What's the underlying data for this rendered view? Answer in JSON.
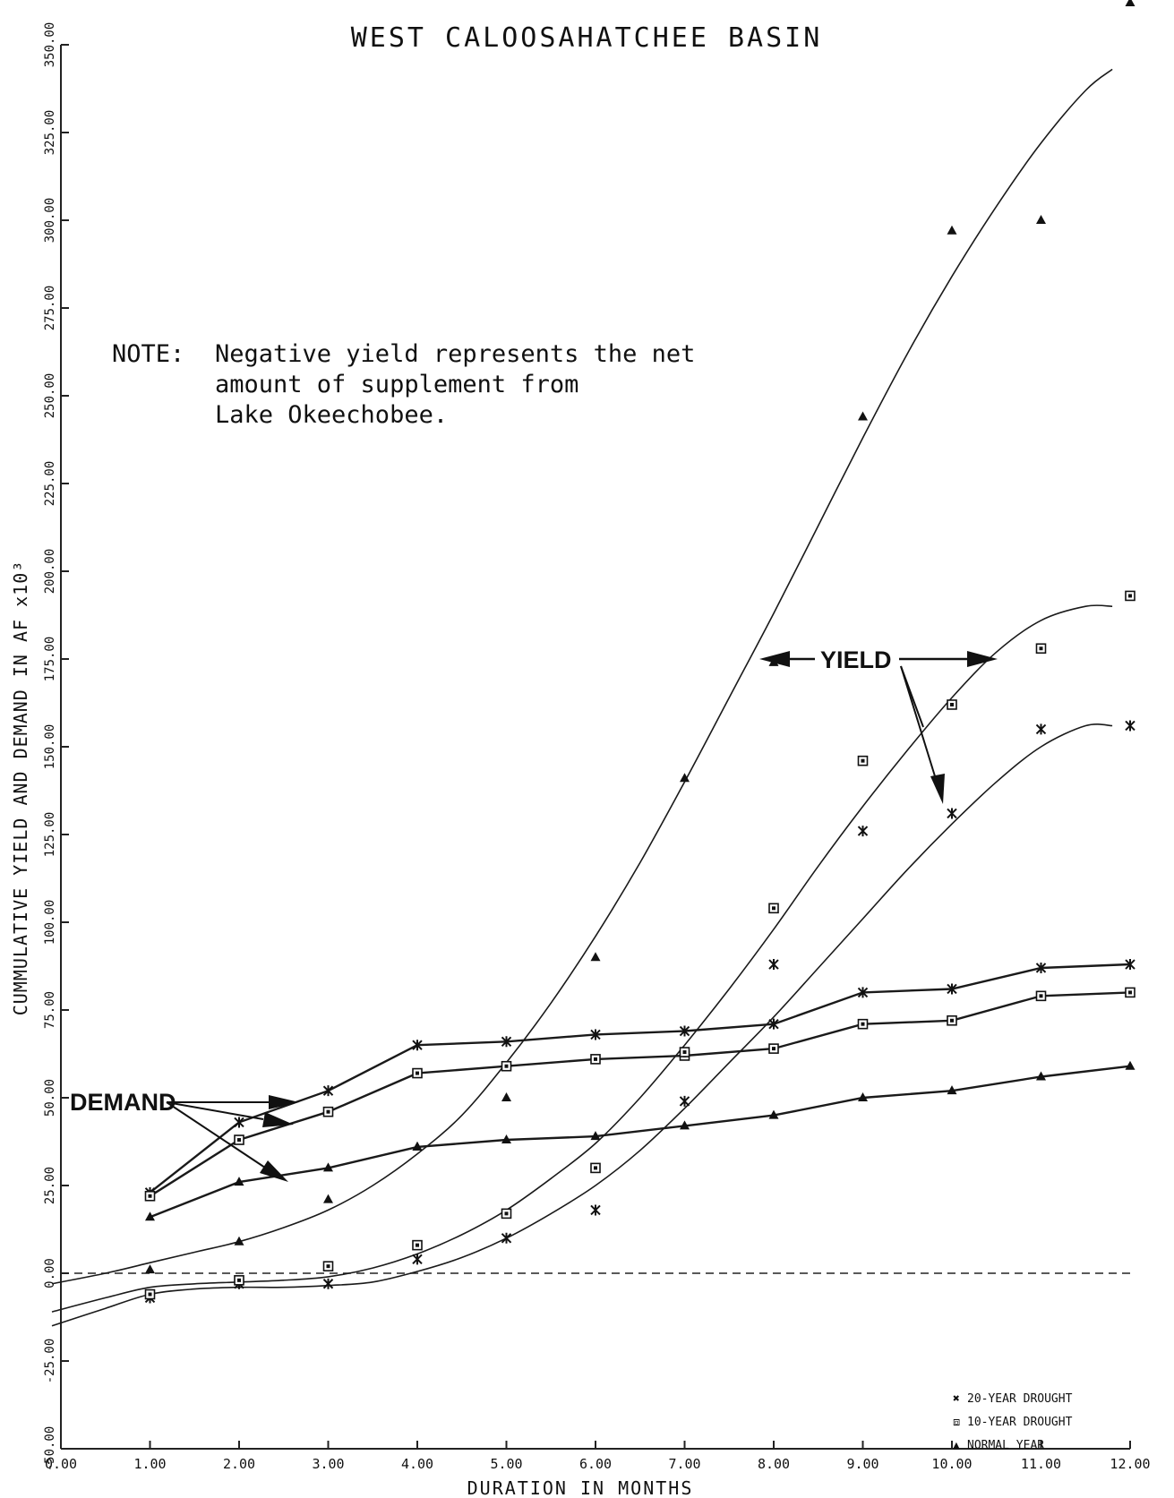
{
  "chart_data": {
    "type": "line",
    "title": "WEST CALOOSAHATCHEE BASIN",
    "xlabel": "DURATION IN MONTHS",
    "ylabel": "CUMMULATIVE YIELD AND DEMAND IN AF x10³",
    "xlim": [
      0,
      12
    ],
    "ylim": [
      -50,
      350
    ],
    "x_ticks": [
      0,
      1,
      2,
      3,
      4,
      5,
      6,
      7,
      8,
      9,
      10,
      11,
      12
    ],
    "x_tick_labels": [
      "0.00",
      "1.00",
      "2.00",
      "3.00",
      "4.00",
      "5.00",
      "6.00",
      "7.00",
      "8.00",
      "9.00",
      "10.00",
      "11.00",
      "12.00"
    ],
    "y_ticks": [
      -50,
      -25,
      0,
      25,
      50,
      75,
      100,
      125,
      150,
      175,
      200,
      225,
      250,
      275,
      300,
      325,
      350
    ],
    "y_tick_labels": [
      "-50.00",
      "-25.00",
      "0.00",
      "25.00",
      "50.00",
      "75.00",
      "100.00",
      "125.00",
      "150.00",
      "175.00",
      "200.00",
      "225.00",
      "250.00",
      "275.00",
      "300.00",
      "325.00",
      "350.00"
    ],
    "grid": false,
    "legend_position": "bottom-right",
    "zero_reference": 0,
    "series": [
      {
        "name": "20-YEAR DROUGHT",
        "marker": "x-box",
        "x": [
          1,
          2,
          3,
          4,
          5,
          6,
          7,
          8,
          9,
          10,
          11,
          12
        ],
        "demand": [
          23,
          43,
          52,
          65,
          66,
          68,
          69,
          71,
          80,
          81,
          87,
          88
        ],
        "yield_points": [
          -7,
          -3,
          -3,
          4,
          10,
          18,
          49,
          88,
          126,
          131,
          155,
          156
        ],
        "yield_curve": [
          [
            -0.1,
            -15
          ],
          [
            0.5,
            -10
          ],
          [
            1,
            -6
          ],
          [
            1.5,
            -4.5
          ],
          [
            2,
            -4
          ],
          [
            2.5,
            -4
          ],
          [
            3,
            -3.5
          ],
          [
            3.5,
            -2.5
          ],
          [
            4,
            0.5
          ],
          [
            4.5,
            4.5
          ],
          [
            5,
            10
          ],
          [
            5.5,
            17
          ],
          [
            6,
            25
          ],
          [
            6.5,
            35
          ],
          [
            7,
            47
          ],
          [
            7.5,
            60
          ],
          [
            8,
            73
          ],
          [
            8.5,
            87
          ],
          [
            9,
            101
          ],
          [
            9.5,
            115
          ],
          [
            10,
            128
          ],
          [
            10.5,
            140
          ],
          [
            11,
            150
          ],
          [
            11.5,
            156
          ],
          [
            11.8,
            156
          ]
        ]
      },
      {
        "name": "10-YEAR DROUGHT",
        "marker": "square-box",
        "x": [
          1,
          2,
          3,
          4,
          5,
          6,
          7,
          8,
          9,
          10,
          11,
          12
        ],
        "demand": [
          22,
          38,
          46,
          57,
          59,
          61,
          62,
          64,
          71,
          72,
          79,
          80
        ],
        "yield_points": [
          -6,
          -2,
          2,
          8,
          17,
          30,
          63,
          104,
          146,
          162,
          178,
          193
        ],
        "yield_curve": [
          [
            -0.1,
            -11
          ],
          [
            0.5,
            -7
          ],
          [
            1,
            -4
          ],
          [
            1.5,
            -3
          ],
          [
            2,
            -2.5
          ],
          [
            2.5,
            -2
          ],
          [
            3,
            -1
          ],
          [
            3.5,
            1.5
          ],
          [
            4,
            5.5
          ],
          [
            4.5,
            11
          ],
          [
            5,
            18
          ],
          [
            5.5,
            27
          ],
          [
            6,
            37
          ],
          [
            6.5,
            50
          ],
          [
            7,
            65
          ],
          [
            7.5,
            81
          ],
          [
            8,
            98
          ],
          [
            8.5,
            116
          ],
          [
            9,
            133
          ],
          [
            9.5,
            149
          ],
          [
            10,
            164
          ],
          [
            10.5,
            177
          ],
          [
            11,
            186
          ],
          [
            11.5,
            190
          ],
          [
            11.8,
            190
          ]
        ]
      },
      {
        "name": "NORMAL YEAR",
        "marker": "triangle",
        "x": [
          1,
          2,
          3,
          4,
          5,
          6,
          7,
          8,
          9,
          10,
          11,
          12
        ],
        "demand": [
          16,
          26,
          30,
          36,
          38,
          39,
          42,
          45,
          50,
          52,
          56,
          59
        ],
        "yield_points": [
          1,
          9,
          21,
          36,
          50,
          90,
          141,
          174,
          244,
          297,
          300,
          362
        ],
        "yield_curve": [
          [
            -0.1,
            -3
          ],
          [
            0.5,
            0
          ],
          [
            1,
            3
          ],
          [
            1.5,
            6
          ],
          [
            2,
            9
          ],
          [
            2.5,
            13
          ],
          [
            3,
            18
          ],
          [
            3.5,
            25
          ],
          [
            4,
            34
          ],
          [
            4.5,
            45
          ],
          [
            5,
            60
          ],
          [
            5.5,
            77
          ],
          [
            6,
            96
          ],
          [
            6.5,
            117
          ],
          [
            7,
            140
          ],
          [
            7.5,
            164
          ],
          [
            8,
            188
          ],
          [
            8.5,
            213
          ],
          [
            9,
            238
          ],
          [
            9.5,
            262
          ],
          [
            10,
            284
          ],
          [
            10.5,
            304
          ],
          [
            11,
            322
          ],
          [
            11.5,
            337
          ],
          [
            11.8,
            343
          ]
        ]
      }
    ],
    "annotations": {
      "note_label": "NOTE:",
      "note_lines": [
        "Negative yield represents the net",
        "amount of supplement from",
        "Lake Okeechobee."
      ],
      "yield_label": "YIELD",
      "demand_label": "DEMAND"
    },
    "legend": {
      "entries": [
        {
          "symbol": "✖",
          "label": "20-YEAR DROUGHT"
        },
        {
          "symbol": "⧈",
          "label": "10-YEAR DROUGHT"
        },
        {
          "symbol": "▲",
          "label": "NORMAL YEAR"
        }
      ]
    }
  }
}
